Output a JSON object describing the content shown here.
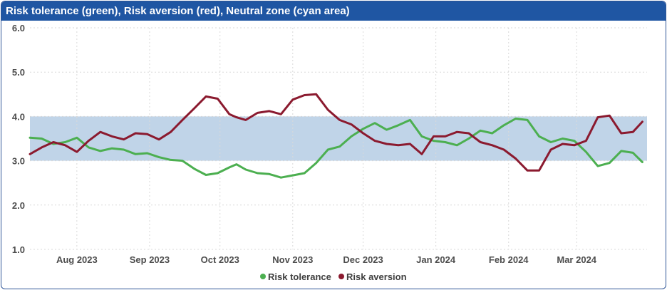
{
  "chart_data": {
    "type": "line",
    "title": "Risk tolerance (green), Risk aversion (red), Neutral zone (cyan area)",
    "ylim": [
      1.0,
      6.0
    ],
    "y_ticks": [
      "1.0",
      "2.0",
      "3.0",
      "4.0",
      "5.0",
      "6.0"
    ],
    "x_range": [
      "2023-07-12",
      "2024-03-31"
    ],
    "x_ticks": [
      {
        "label": "Aug 2023",
        "date": "2023-08-01"
      },
      {
        "label": "Sep 2023",
        "date": "2023-09-01"
      },
      {
        "label": "Oct 2023",
        "date": "2023-10-01"
      },
      {
        "label": "Nov 2023",
        "date": "2023-11-01"
      },
      {
        "label": "Dec 2023",
        "date": "2023-12-01"
      },
      {
        "label": "Jan 2024",
        "date": "2024-01-01"
      },
      {
        "label": "Feb 2024",
        "date": "2024-02-01"
      },
      {
        "label": "Mar 2024",
        "date": "2024-03-01"
      }
    ],
    "neutral_zone": {
      "low": 3.0,
      "high": 4.0,
      "color": "#c0d4e8"
    },
    "grid": true,
    "legend_position": "bottom-center",
    "series": [
      {
        "name": "Risk tolerance",
        "color": "#4caf50",
        "x": [
          "2023-07-12",
          "2023-07-17",
          "2023-07-22",
          "2023-07-27",
          "2023-08-01",
          "2023-08-06",
          "2023-08-11",
          "2023-08-16",
          "2023-08-21",
          "2023-08-26",
          "2023-08-31",
          "2023-09-05",
          "2023-09-10",
          "2023-09-15",
          "2023-09-20",
          "2023-09-25",
          "2023-09-30",
          "2023-10-05",
          "2023-10-08",
          "2023-10-12",
          "2023-10-17",
          "2023-10-22",
          "2023-10-27",
          "2023-11-01",
          "2023-11-06",
          "2023-11-11",
          "2023-11-16",
          "2023-11-21",
          "2023-11-26",
          "2023-12-01",
          "2023-12-06",
          "2023-12-11",
          "2023-12-16",
          "2023-12-21",
          "2023-12-26",
          "2023-12-31",
          "2024-01-05",
          "2024-01-10",
          "2024-01-15",
          "2024-01-20",
          "2024-01-25",
          "2024-01-30",
          "2024-02-04",
          "2024-02-09",
          "2024-02-14",
          "2024-02-19",
          "2024-02-24",
          "2024-02-29",
          "2024-03-05",
          "2024-03-10",
          "2024-03-15",
          "2024-03-20",
          "2024-03-25",
          "2024-03-29"
        ],
        "values": [
          3.52,
          3.5,
          3.38,
          3.42,
          3.52,
          3.3,
          3.22,
          3.28,
          3.25,
          3.15,
          3.17,
          3.08,
          3.02,
          3.0,
          2.82,
          2.68,
          2.72,
          2.85,
          2.92,
          2.8,
          2.72,
          2.7,
          2.62,
          2.67,
          2.72,
          2.95,
          3.25,
          3.32,
          3.55,
          3.72,
          3.85,
          3.7,
          3.8,
          3.92,
          3.55,
          3.45,
          3.42,
          3.35,
          3.5,
          3.68,
          3.62,
          3.8,
          3.95,
          3.92,
          3.55,
          3.42,
          3.5,
          3.45,
          3.2,
          2.88,
          2.95,
          3.22,
          3.18,
          2.97
        ]
      },
      {
        "name": "Risk aversion",
        "color": "#8b1a2f",
        "x": [
          "2023-07-12",
          "2023-07-17",
          "2023-07-22",
          "2023-07-27",
          "2023-08-01",
          "2023-08-06",
          "2023-08-11",
          "2023-08-16",
          "2023-08-21",
          "2023-08-26",
          "2023-08-31",
          "2023-09-05",
          "2023-09-10",
          "2023-09-15",
          "2023-09-20",
          "2023-09-25",
          "2023-09-30",
          "2023-10-05",
          "2023-10-08",
          "2023-10-12",
          "2023-10-17",
          "2023-10-22",
          "2023-10-27",
          "2023-11-01",
          "2023-11-06",
          "2023-11-11",
          "2023-11-16",
          "2023-11-21",
          "2023-11-26",
          "2023-12-01",
          "2023-12-06",
          "2023-12-11",
          "2023-12-16",
          "2023-12-21",
          "2023-12-26",
          "2023-12-31",
          "2024-01-05",
          "2024-01-10",
          "2024-01-15",
          "2024-01-20",
          "2024-01-25",
          "2024-01-30",
          "2024-02-04",
          "2024-02-09",
          "2024-02-14",
          "2024-02-19",
          "2024-02-24",
          "2024-02-29",
          "2024-03-05",
          "2024-03-10",
          "2024-03-15",
          "2024-03-20",
          "2024-03-25",
          "2024-03-29"
        ],
        "values": [
          3.15,
          3.3,
          3.42,
          3.35,
          3.2,
          3.45,
          3.65,
          3.55,
          3.48,
          3.62,
          3.6,
          3.48,
          3.65,
          3.92,
          4.18,
          4.45,
          4.4,
          4.05,
          3.98,
          3.92,
          4.08,
          4.12,
          4.05,
          4.38,
          4.48,
          4.5,
          4.15,
          3.92,
          3.82,
          3.62,
          3.45,
          3.38,
          3.35,
          3.38,
          3.15,
          3.55,
          3.55,
          3.65,
          3.62,
          3.42,
          3.35,
          3.25,
          3.05,
          2.78,
          2.78,
          3.25,
          3.38,
          3.35,
          3.45,
          3.98,
          4.02,
          3.62,
          3.65,
          3.88
        ]
      }
    ]
  }
}
